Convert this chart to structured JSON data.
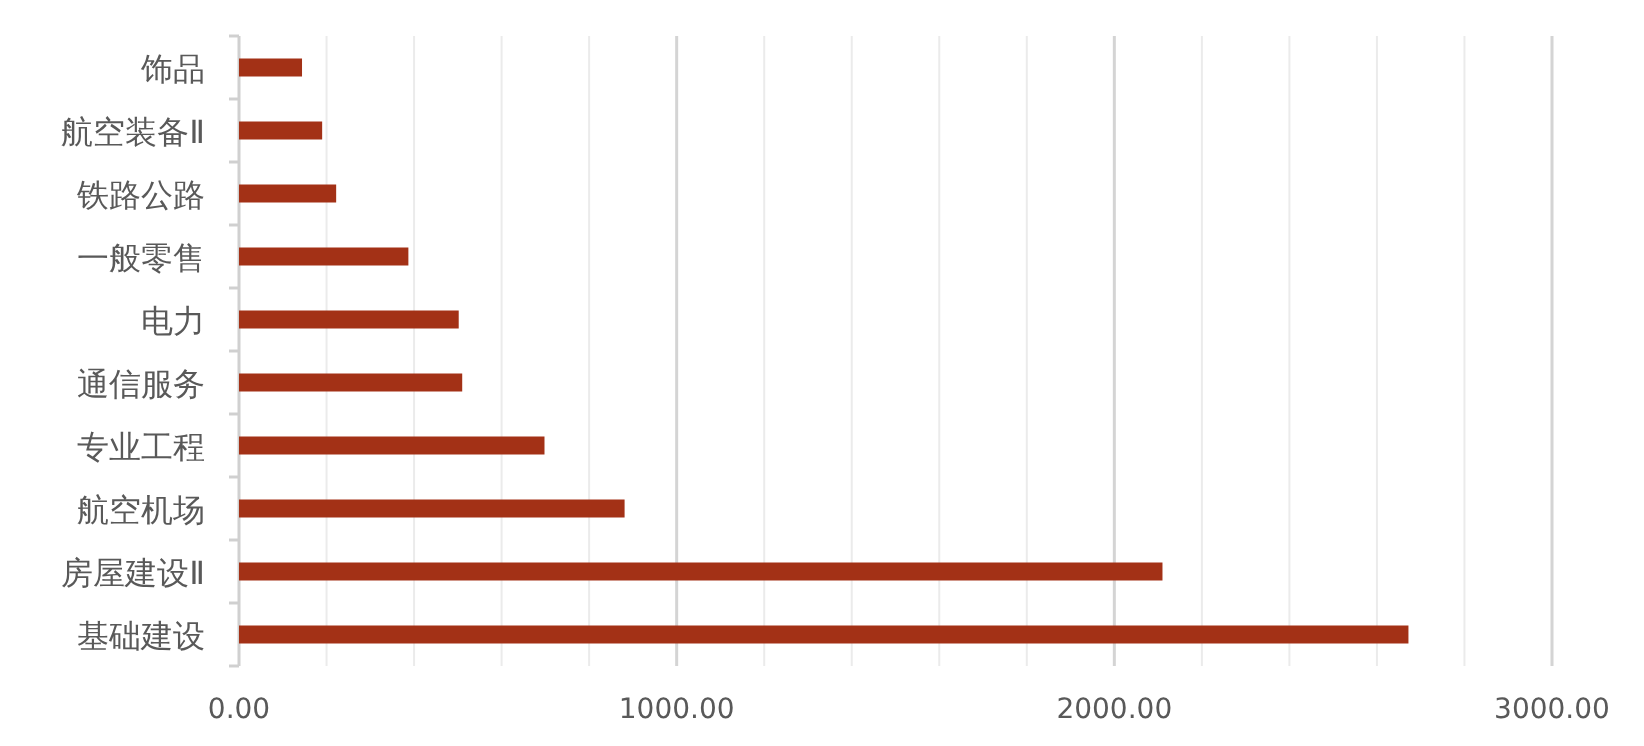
{
  "chart_data": {
    "type": "bar",
    "orientation": "horizontal",
    "categories": [
      "饰品",
      "航空装备Ⅱ",
      "铁路公路",
      "一般零售",
      "电力",
      "通信服务",
      "专业工程",
      "航空机场",
      "房屋建设Ⅱ",
      "基础建设"
    ],
    "values": [
      144,
      190,
      222,
      387,
      502,
      510,
      698,
      881,
      2110,
      2672
    ],
    "color": "#a33116",
    "xlim": [
      0,
      3000
    ],
    "xticks": [
      {
        "value": 0,
        "label": "0.00"
      },
      {
        "value": 200,
        "label": null
      },
      {
        "value": 400,
        "label": null
      },
      {
        "value": 600,
        "label": null
      },
      {
        "value": 800,
        "label": null
      },
      {
        "value": 1000,
        "label": "1000.00"
      },
      {
        "value": 1200,
        "label": null
      },
      {
        "value": 1400,
        "label": null
      },
      {
        "value": 1600,
        "label": null
      },
      {
        "value": 1800,
        "label": null
      },
      {
        "value": 2000,
        "label": "2000.00"
      },
      {
        "value": 2200,
        "label": null
      },
      {
        "value": 2400,
        "label": null
      },
      {
        "value": 2600,
        "label": null
      },
      {
        "value": 2800,
        "label": null
      },
      {
        "value": 3000,
        "label": "3000.00"
      }
    ],
    "grid": "x"
  }
}
